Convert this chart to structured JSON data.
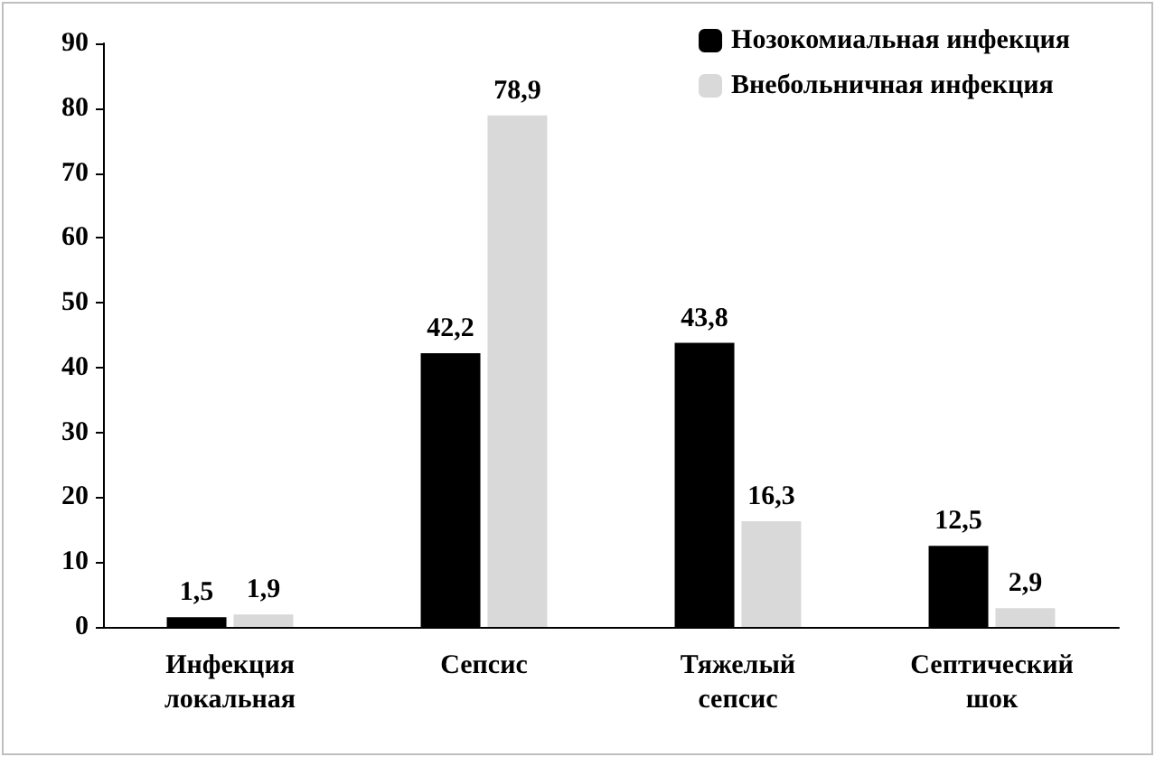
{
  "chart_data": {
    "type": "bar",
    "categories": [
      "Инфекция локальная",
      "Сепсис",
      "Тяжелый сепсис",
      "Септический шок"
    ],
    "series": [
      {
        "name": "Нозокомиальная инфекция",
        "color": "#000000",
        "values": [
          1.5,
          42.2,
          43.8,
          12.5
        ],
        "value_labels": [
          "1,5",
          "42,2",
          "43,8",
          "12,5"
        ]
      },
      {
        "name": "Внебольничная инфекция",
        "color": "#d9d9d9",
        "values": [
          1.9,
          78.9,
          16.3,
          2.9
        ],
        "value_labels": [
          "1,9",
          "78,9",
          "16,3",
          "2,9"
        ]
      }
    ],
    "ylim": [
      0,
      90
    ],
    "yticks": [
      0,
      10,
      20,
      30,
      40,
      50,
      60,
      70,
      80,
      90
    ],
    "grid": false,
    "legend": "top right"
  }
}
